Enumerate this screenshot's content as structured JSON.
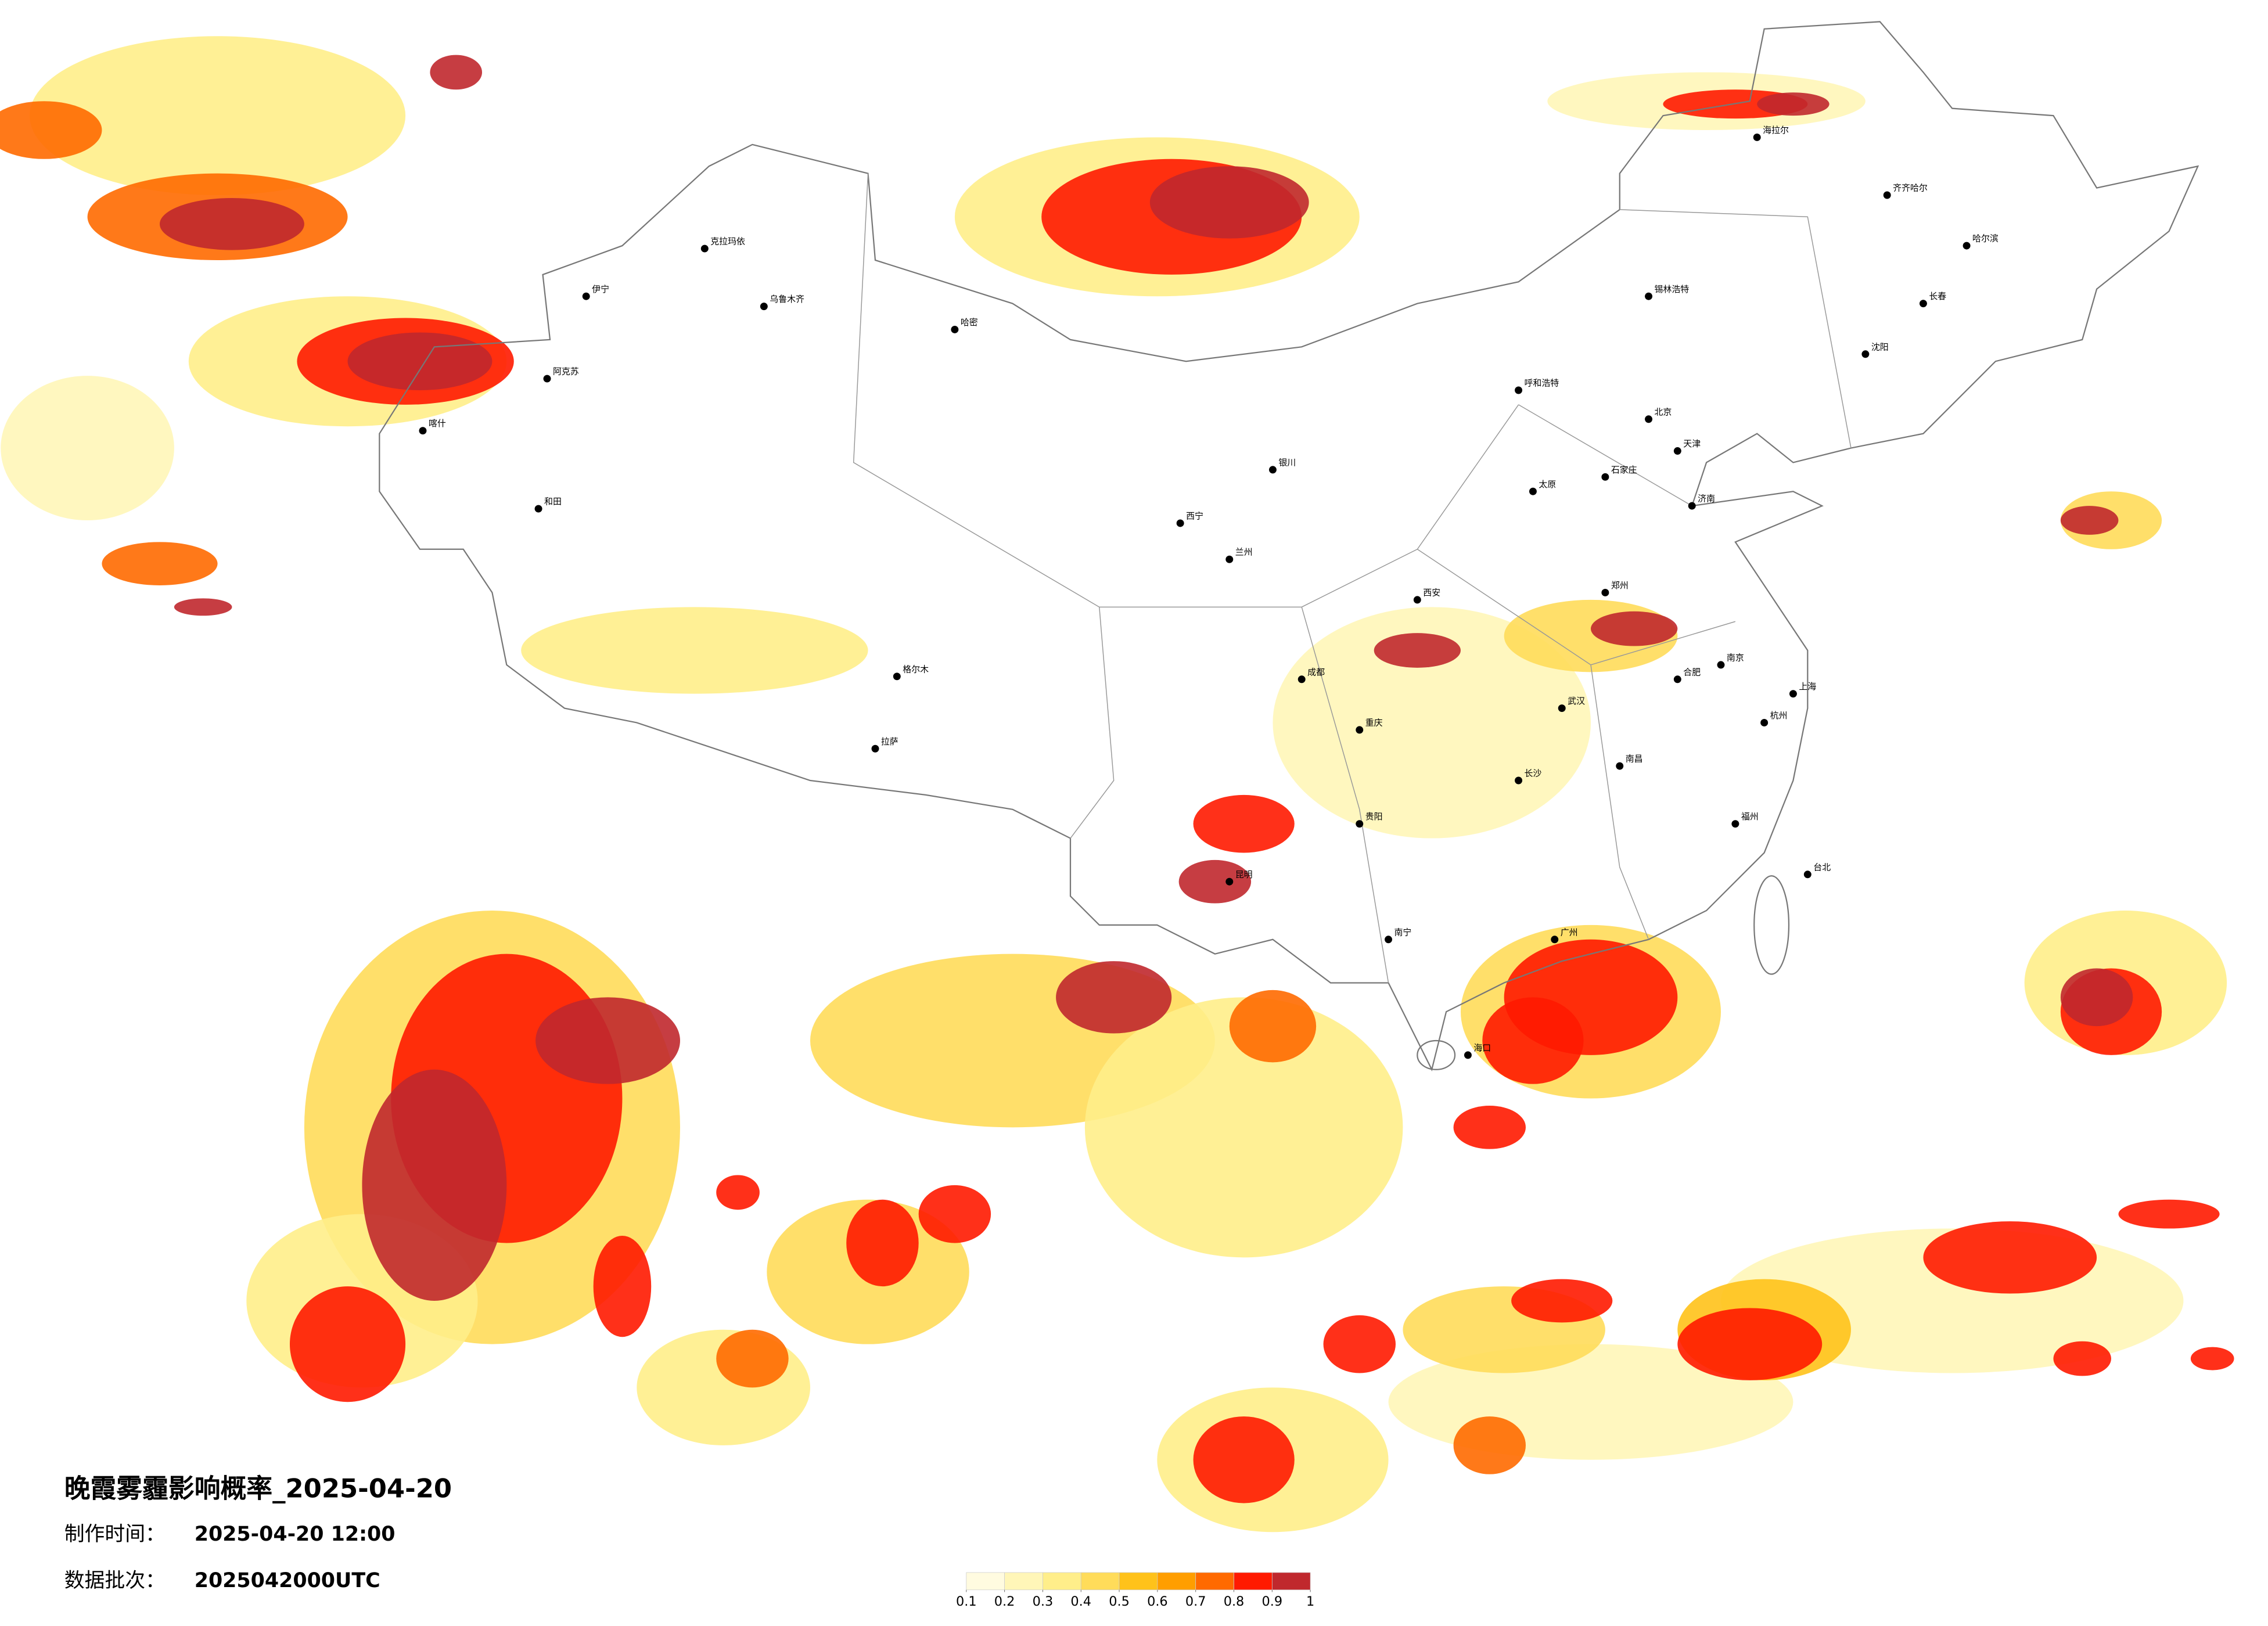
{
  "title": "晚霞雾霾影响概率_2025-04-20",
  "made_label": "制作时间：",
  "made_time": "2025-04-20 12:00",
  "batch_label": "数据批次：",
  "batch": "2025042000UTC",
  "legend": {
    "ticks": [
      0.1,
      0.2,
      0.3,
      0.4,
      0.5,
      0.6,
      0.7,
      0.8,
      0.9,
      1
    ],
    "colors": [
      "#fffbe0",
      "#fff6b8",
      "#ffee8a",
      "#ffdc5a",
      "#ffc21a",
      "#ff9e00",
      "#ff6a00",
      "#ff1a00",
      "#c0282d"
    ]
  },
  "cities": [
    "克拉玛依",
    "伊宁",
    "乌鲁木齐",
    "哈密",
    "阿克苏",
    "喀什",
    "和田",
    "格尔木",
    "拉萨",
    "西宁",
    "兰州",
    "银川",
    "呼和浩特",
    "北京",
    "天津",
    "石家庄",
    "太原",
    "西安",
    "郑州",
    "济南",
    "南京",
    "上海",
    "杭州",
    "合肥",
    "武汉",
    "长沙",
    "南昌",
    "福州",
    "广州",
    "南宁",
    "海口",
    "贵阳",
    "昆明",
    "成都",
    "重庆",
    "哈尔滨",
    "长春",
    "沈阳",
    "台北",
    "齐齐哈尔",
    "海拉尔",
    "锡林浩特"
  ]
}
